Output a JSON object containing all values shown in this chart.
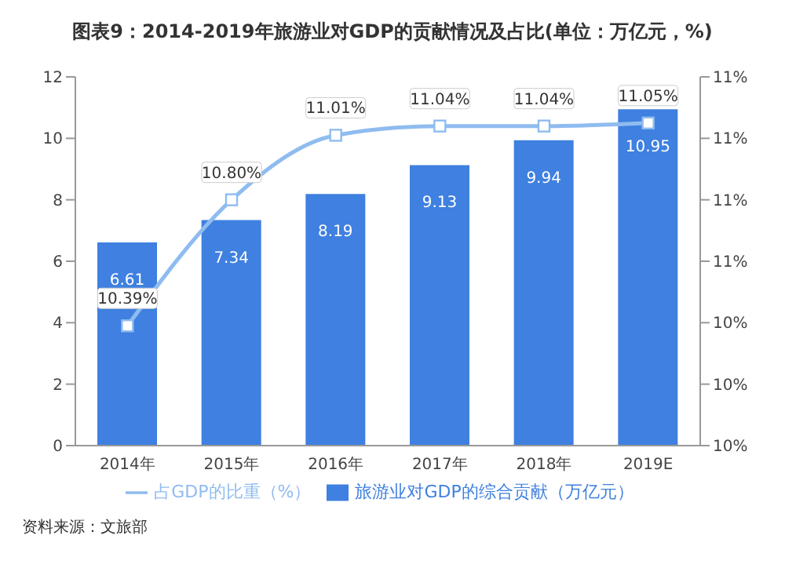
{
  "chart_data": {
    "type": "bar",
    "title": "图表9：2014-2019年旅游业对GDP的贡献情况及占比(单位：万亿元，%)",
    "categories": [
      "2014年",
      "2015年",
      "2016年",
      "2017年",
      "2018年",
      "2019E"
    ],
    "series": [
      {
        "name": "旅游业对GDP的综合贡献（万亿元）",
        "color": "#3f80e0",
        "values": [
          6.61,
          7.34,
          8.19,
          9.13,
          9.94,
          10.95
        ],
        "value_labels": [
          "6.61",
          "7.34",
          "8.19",
          "9.13",
          "9.94",
          "10.95"
        ]
      },
      {
        "name": "占GDP的比重（%）",
        "type": "line",
        "axis": "y2",
        "color": "#8fbcf0",
        "values": [
          10.39,
          10.8,
          11.01,
          11.04,
          11.04,
          11.05
        ],
        "value_labels": [
          "10.39%",
          "10.80%",
          "11.01%",
          "11.04%",
          "11.04%",
          "11.05%"
        ]
      }
    ],
    "ylim": [
      0,
      12
    ],
    "yticks": [
      0,
      2,
      4,
      6,
      8,
      10,
      12
    ],
    "y2lim": [
      10,
      11.2
    ],
    "y2ticks": [
      {
        "value": 10,
        "label": "10%"
      },
      {
        "value": 10.2,
        "label": "10%"
      },
      {
        "value": 10.4,
        "label": "10%"
      },
      {
        "value": 10.6,
        "label": "11%"
      },
      {
        "value": 10.8,
        "label": "11%"
      },
      {
        "value": 11,
        "label": "11%"
      },
      {
        "value": 11.2,
        "label": "11%"
      }
    ],
    "marker": "square",
    "legend": "bottom",
    "grid": false,
    "annotations": [
      "资料来源：文旅部"
    ]
  }
}
